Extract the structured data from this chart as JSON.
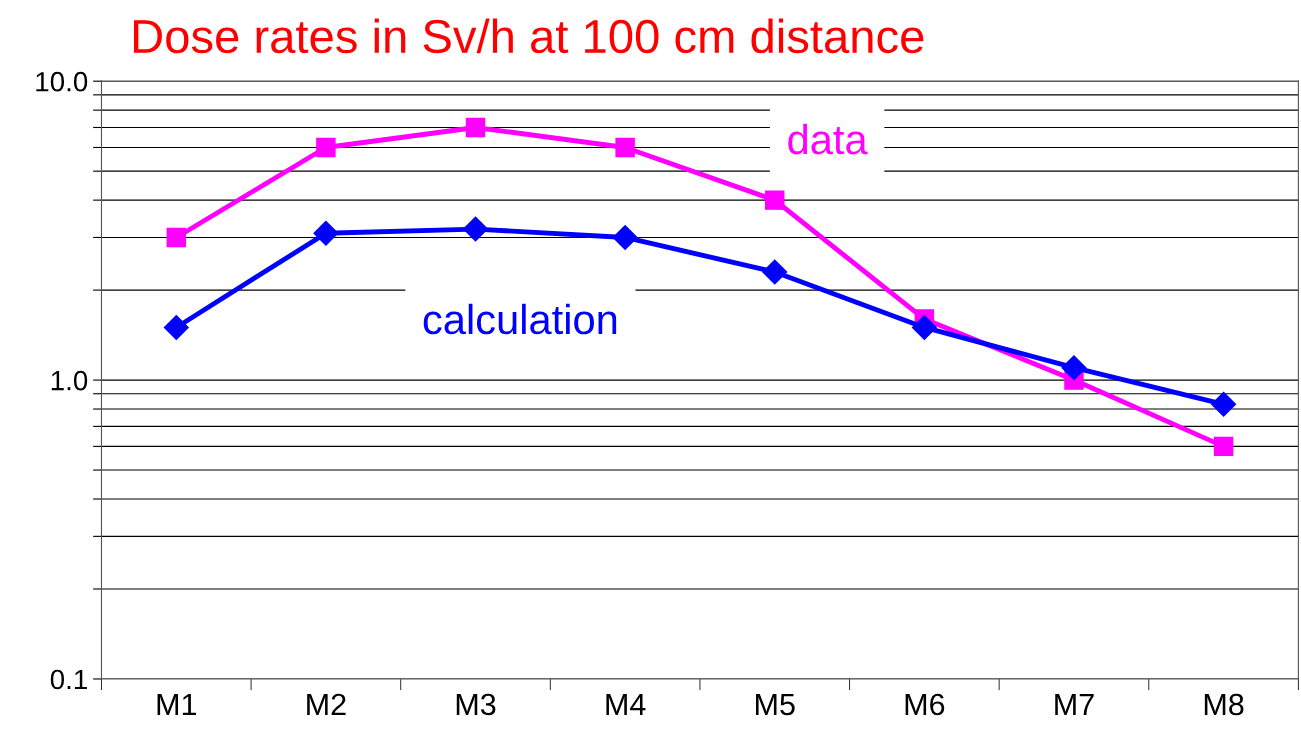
{
  "chart_data": {
    "type": "line",
    "title": "Dose rates in Sv/h at 100 cm distance",
    "categories": [
      "M1",
      "M2",
      "M3",
      "M4",
      "M5",
      "M6",
      "M7",
      "M8"
    ],
    "series": [
      {
        "name": "data",
        "color": "#ff00ff",
        "marker": "square",
        "values": [
          3.0,
          6.0,
          7.0,
          6.0,
          4.0,
          1.6,
          1.0,
          0.6
        ]
      },
      {
        "name": "calculation",
        "color": "#0000ff",
        "marker": "diamond",
        "values": [
          1.5,
          3.1,
          3.2,
          3.0,
          2.3,
          1.5,
          1.1,
          0.83
        ]
      }
    ],
    "log": "y",
    "ylim": [
      0.1,
      10
    ],
    "yticks": [
      {
        "value": 0.1,
        "label": "0.1"
      },
      {
        "value": 0.2,
        "label": null
      },
      {
        "value": 0.3,
        "label": null
      },
      {
        "value": 0.4,
        "label": null
      },
      {
        "value": 0.5,
        "label": null
      },
      {
        "value": 0.6,
        "label": null
      },
      {
        "value": 0.7,
        "label": null
      },
      {
        "value": 0.8,
        "label": null
      },
      {
        "value": 0.9,
        "label": null
      },
      {
        "value": 1,
        "label": "1.0"
      },
      {
        "value": 2,
        "label": null
      },
      {
        "value": 3,
        "label": null
      },
      {
        "value": 4,
        "label": null
      },
      {
        "value": 5,
        "label": null
      },
      {
        "value": 6,
        "label": null
      },
      {
        "value": 7,
        "label": null
      },
      {
        "value": 8,
        "label": null
      },
      {
        "value": 9,
        "label": null
      },
      {
        "value": 10,
        "label": "10.0"
      }
    ],
    "grid": "y",
    "legend": false,
    "line_style": "solid"
  }
}
